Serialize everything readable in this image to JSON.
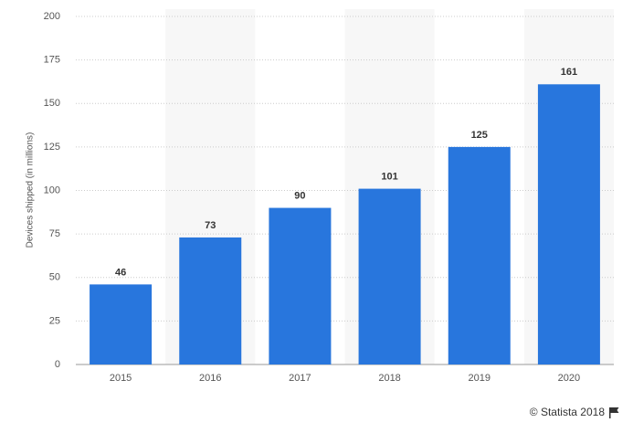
{
  "chart_data": {
    "type": "bar",
    "y_label": "Devices shipped (in millions)",
    "credit": "© Statista 2018",
    "categories": [
      "2015",
      "2016",
      "2017",
      "2018",
      "2019",
      "2020"
    ],
    "values": [
      46,
      73,
      90,
      101,
      125,
      161
    ],
    "color": "#2876dd",
    "ylim": [
      0,
      200
    ],
    "yticks": [
      0,
      25,
      50,
      75,
      100,
      125,
      150,
      175,
      200
    ],
    "grid": true,
    "alternating_bands": true
  }
}
